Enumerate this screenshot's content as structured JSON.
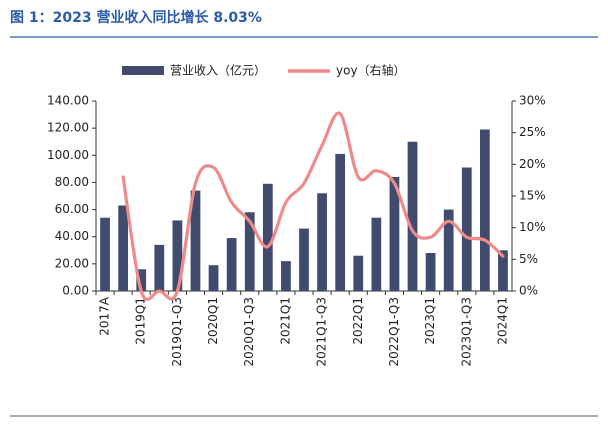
{
  "chart_data": {
    "type": "bar_line",
    "title": "图 1：2023 营业收入同比增长 8.03%",
    "categories": [
      "2017A",
      null,
      "2019Q1",
      null,
      "2019Q1-Q3",
      null,
      "2020Q1",
      null,
      "2020Q1-Q3",
      null,
      "2021Q1",
      null,
      "2021Q1-Q3",
      null,
      "2022Q1",
      null,
      "2022Q1-Q3",
      null,
      "2023Q1",
      null,
      "2023Q1-Q3",
      null,
      "2024Q1"
    ],
    "series": [
      {
        "name": "营业收入（亿元）",
        "color": "#414b6d",
        "type": "bar",
        "values": [
          54,
          63,
          16,
          34,
          52,
          74,
          19,
          39,
          58,
          79,
          22,
          46,
          72,
          101,
          26,
          54,
          84,
          110,
          28,
          60,
          91,
          119,
          30
        ]
      },
      {
        "name": "yoy（右轴）",
        "color": "#f08a8a",
        "type": "line",
        "axis": "y2",
        "values": [
          null,
          18,
          0,
          0,
          0,
          17,
          19.5,
          14,
          11,
          7,
          14,
          17,
          23,
          28,
          18,
          19,
          17,
          9.5,
          8.5,
          11,
          8.5,
          8.03,
          5.5
        ]
      }
    ],
    "ylim": [
      0,
      140
    ],
    "yticks": [
      {
        "value": 0,
        "label": "0.00"
      },
      {
        "value": 20,
        "label": "20.00"
      },
      {
        "value": 40,
        "label": "40.00"
      },
      {
        "value": 60,
        "label": "60.00"
      },
      {
        "value": 80,
        "label": "80.00"
      },
      {
        "value": 100,
        "label": "100.00"
      },
      {
        "value": 120,
        "label": "120.00"
      },
      {
        "value": 140,
        "label": "140.00"
      }
    ],
    "y2lim": [
      0,
      30
    ],
    "y2ticks": [
      {
        "value": 0,
        "label": "0%"
      },
      {
        "value": 5,
        "label": "5%"
      },
      {
        "value": 10,
        "label": "10%"
      },
      {
        "value": 15,
        "label": "15%"
      },
      {
        "value": 20,
        "label": "20%"
      },
      {
        "value": 25,
        "label": "25%"
      },
      {
        "value": 30,
        "label": "30%"
      }
    ],
    "legend": "top"
  }
}
